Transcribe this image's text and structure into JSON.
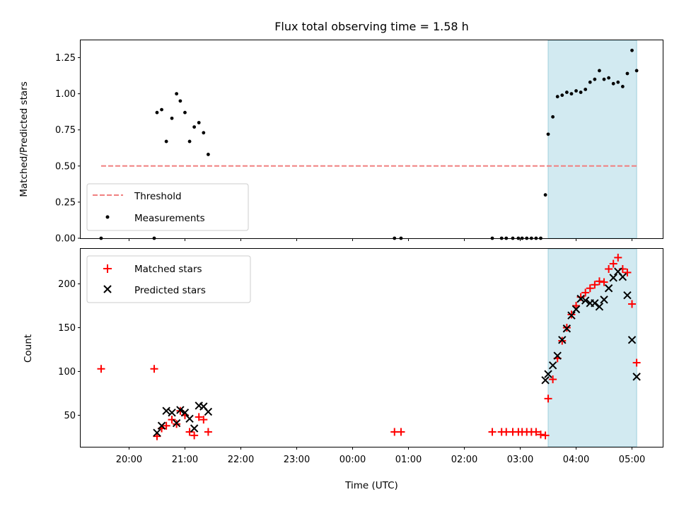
{
  "chart_data": [
    {
      "type": "scatter",
      "title": "Flux total observing time = 1.58 h",
      "ylabel": "Matched/Predicted stars",
      "xlim": [
        "19:08",
        "05:33"
      ],
      "ylim": [
        0,
        1.37
      ],
      "yticks": [
        "0.00",
        "0.25",
        "0.50",
        "0.75",
        "1.00",
        "1.25"
      ],
      "xticks": [
        "20:00",
        "21:00",
        "22:00",
        "23:00",
        "00:00",
        "01:00",
        "02:00",
        "03:00",
        "04:00",
        "05:00"
      ],
      "shaded_region": [
        "03:30",
        "05:05"
      ],
      "colors": {
        "threshold": "#f08080",
        "measurements": "#000000",
        "shade": "#add8e6"
      },
      "legend": {
        "placement": "lower left",
        "entries": [
          "Threshold",
          "Measurements"
        ]
      },
      "series": [
        {
          "name": "Threshold",
          "style": "dashed-line",
          "points": [
            [
              "19:30",
              0.5
            ],
            [
              "05:07",
              0.5
            ]
          ]
        },
        {
          "name": "Measurements",
          "style": "dot",
          "points": [
            [
              "19:30",
              0.0
            ],
            [
              "20:27",
              0.0
            ],
            [
              "20:30",
              0.87
            ],
            [
              "20:35",
              0.89
            ],
            [
              "20:40",
              0.67
            ],
            [
              "20:46",
              0.83
            ],
            [
              "20:51",
              1.0
            ],
            [
              "20:55",
              0.95
            ],
            [
              "21:00",
              0.87
            ],
            [
              "21:05",
              0.67
            ],
            [
              "21:10",
              0.77
            ],
            [
              "21:15",
              0.8
            ],
            [
              "21:20",
              0.73
            ],
            [
              "21:25",
              0.58
            ],
            [
              "00:45",
              0.0
            ],
            [
              "00:52",
              0.0
            ],
            [
              "02:30",
              0.0
            ],
            [
              "02:40",
              0.0
            ],
            [
              "02:45",
              0.0
            ],
            [
              "02:52",
              0.0
            ],
            [
              "02:58",
              0.0
            ],
            [
              "03:02",
              0.0
            ],
            [
              "03:07",
              0.0
            ],
            [
              "03:12",
              0.0
            ],
            [
              "03:17",
              0.0
            ],
            [
              "03:22",
              0.0
            ],
            [
              "03:27",
              0.3
            ],
            [
              "03:30",
              0.72
            ],
            [
              "03:35",
              0.84
            ],
            [
              "03:40",
              0.98
            ],
            [
              "03:45",
              0.99
            ],
            [
              "03:50",
              1.01
            ],
            [
              "03:55",
              1.0
            ],
            [
              "04:00",
              1.02
            ],
            [
              "04:05",
              1.01
            ],
            [
              "04:10",
              1.03
            ],
            [
              "04:15",
              1.08
            ],
            [
              "04:20",
              1.1
            ],
            [
              "04:25",
              1.16
            ],
            [
              "04:30",
              1.1
            ],
            [
              "04:35",
              1.11
            ],
            [
              "04:40",
              1.07
            ],
            [
              "04:45",
              1.08
            ],
            [
              "04:50",
              1.05
            ],
            [
              "04:55",
              1.14
            ],
            [
              "05:00",
              1.3
            ],
            [
              "05:05",
              1.16
            ]
          ]
        }
      ]
    },
    {
      "type": "scatter",
      "xlabel": "Time (UTC)",
      "ylabel": "Count",
      "xlim": [
        "19:08",
        "05:33"
      ],
      "ylim": [
        14,
        240
      ],
      "yticks": [
        "50",
        "100",
        "150",
        "200"
      ],
      "xticks": [
        "20:00",
        "21:00",
        "22:00",
        "23:00",
        "00:00",
        "01:00",
        "02:00",
        "03:00",
        "04:00",
        "05:00"
      ],
      "shaded_region": [
        "03:30",
        "05:05"
      ],
      "colors": {
        "matched": "#ff0000",
        "predicted": "#000000",
        "shade": "#add8e6"
      },
      "legend": {
        "placement": "upper left",
        "entries": [
          "Matched stars",
          "Predicted stars"
        ]
      },
      "series": [
        {
          "name": "Matched stars",
          "marker": "plus",
          "points": [
            [
              "19:30",
              103
            ],
            [
              "20:27",
              103
            ],
            [
              "20:30",
              26
            ],
            [
              "20:35",
              35
            ],
            [
              "20:40",
              38
            ],
            [
              "20:46",
              45
            ],
            [
              "20:51",
              40
            ],
            [
              "20:55",
              55
            ],
            [
              "21:00",
              50
            ],
            [
              "21:05",
              31
            ],
            [
              "21:10",
              27
            ],
            [
              "21:15",
              48
            ],
            [
              "21:20",
              45
            ],
            [
              "21:25",
              31
            ],
            [
              "00:45",
              31
            ],
            [
              "00:52",
              31
            ],
            [
              "02:30",
              31
            ],
            [
              "02:40",
              31
            ],
            [
              "02:45",
              31
            ],
            [
              "02:52",
              31
            ],
            [
              "02:58",
              31
            ],
            [
              "03:02",
              31
            ],
            [
              "03:07",
              31
            ],
            [
              "03:12",
              31
            ],
            [
              "03:17",
              31
            ],
            [
              "03:22",
              28
            ],
            [
              "03:27",
              27
            ],
            [
              "03:30",
              69
            ],
            [
              "03:35",
              91
            ],
            [
              "03:40",
              115
            ],
            [
              "03:45",
              135
            ],
            [
              "03:50",
              150
            ],
            [
              "03:55",
              165
            ],
            [
              "04:00",
              175
            ],
            [
              "04:05",
              185
            ],
            [
              "04:10",
              190
            ],
            [
              "04:15",
              195
            ],
            [
              "04:20",
              199
            ],
            [
              "04:25",
              203
            ],
            [
              "04:30",
              202
            ],
            [
              "04:35",
              217
            ],
            [
              "04:40",
              223
            ],
            [
              "04:45",
              230
            ],
            [
              "04:50",
              217
            ],
            [
              "04:55",
              213
            ],
            [
              "05:00",
              177
            ],
            [
              "05:05",
              110
            ]
          ]
        },
        {
          "name": "Predicted stars",
          "marker": "x",
          "points": [
            [
              "20:30",
              30
            ],
            [
              "20:35",
              38
            ],
            [
              "20:40",
              55
            ],
            [
              "20:46",
              53
            ],
            [
              "20:51",
              41
            ],
            [
              "20:55",
              56
            ],
            [
              "21:00",
              53
            ],
            [
              "21:05",
              46
            ],
            [
              "21:10",
              35
            ],
            [
              "21:15",
              61
            ],
            [
              "21:20",
              60
            ],
            [
              "21:25",
              54
            ],
            [
              "03:27",
              90
            ],
            [
              "03:30",
              97
            ],
            [
              "03:35",
              107
            ],
            [
              "03:40",
              118
            ],
            [
              "03:45",
              136
            ],
            [
              "03:50",
              149
            ],
            [
              "03:55",
              164
            ],
            [
              "04:00",
              171
            ],
            [
              "04:05",
              183
            ],
            [
              "04:10",
              181
            ],
            [
              "04:15",
              178
            ],
            [
              "04:20",
              178
            ],
            [
              "04:25",
              174
            ],
            [
              "04:30",
              182
            ],
            [
              "04:35",
              195
            ],
            [
              "04:40",
              207
            ],
            [
              "04:45",
              214
            ],
            [
              "04:50",
              208
            ],
            [
              "04:55",
              187
            ],
            [
              "05:00",
              136
            ],
            [
              "05:05",
              94
            ]
          ]
        }
      ]
    }
  ]
}
